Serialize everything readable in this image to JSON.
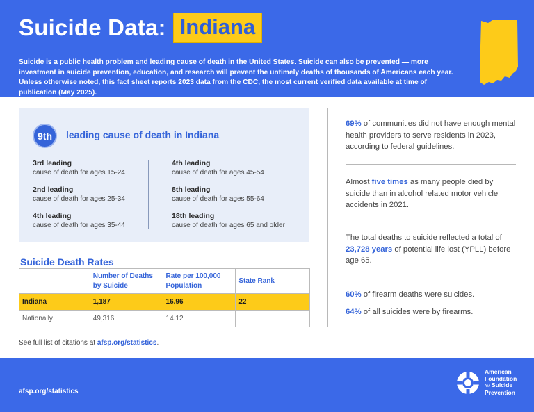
{
  "header": {
    "title": "Suicide Data:",
    "state": "Indiana",
    "intro": "Suicide is a public health problem and leading cause of death in the United States. Suicide can also be prevented — more investment in suicide prevention, education, and research will prevent the untimely deaths of thousands of Americans each year. Unless otherwise noted, this fact sheet reports 2023 data from the CDC, the most current verified data available at time of publication (May 2025)."
  },
  "leading": {
    "rank": "9th",
    "label": "leading cause of death in Indiana",
    "left": [
      {
        "rank": "3rd leading",
        "desc": "cause of death for ages 15-24"
      },
      {
        "rank": "2nd leading",
        "desc": "cause of death for ages 25-34"
      },
      {
        "rank": "4th leading",
        "desc": "cause of death for ages 35-44"
      }
    ],
    "right": [
      {
        "rank": "4th leading",
        "desc": "cause of death for ages 45-54"
      },
      {
        "rank": "8th leading",
        "desc": "cause of death for ages 55-64"
      },
      {
        "rank": "18th leading",
        "desc": "cause of death for ages 65 and older"
      }
    ]
  },
  "rates": {
    "title": "Suicide Death Rates",
    "headers": [
      "",
      "Number of Deaths by Suicide",
      "Rate per 100,000 Population",
      "State Rank"
    ],
    "rows": [
      [
        "Indiana",
        "1,187",
        "16.96",
        "22"
      ],
      [
        "Nationally",
        "49,316",
        "14.12",
        ""
      ]
    ]
  },
  "citation": {
    "prefix": "See full list of citations at",
    "link": "afsp.org/statistics",
    "suffix": "."
  },
  "stats": {
    "s1_hl": "69%",
    "s1_rest": " of communities did not have enough mental health providers to serve residents in 2023, according to federal guidelines.",
    "s2_pre": "Almost ",
    "s2_hl": "five times",
    "s2_rest": " as many people died by suicide than in alcohol related motor vehicle accidents in 2021.",
    "s3_pre": "The total deaths to suicide reflected a total of ",
    "s3_hl": "23,728 years",
    "s3_rest": " of potential life lost (YPLL) before age 65.",
    "s4_hl": "60%",
    "s4_rest": " of firearm deaths were suicides.",
    "s5_hl": "64%",
    "s5_rest": " of all suicides were by firearms."
  },
  "footer": {
    "link": "afsp.org/statistics",
    "logo_line1": "American",
    "logo_line2": "Foundation",
    "logo_line3_small": "for",
    "logo_line3": "Suicide",
    "logo_line4": "Prevention"
  },
  "colors": {
    "brand_blue": "#3b69e8",
    "highlight_yellow": "#fdcb19"
  }
}
